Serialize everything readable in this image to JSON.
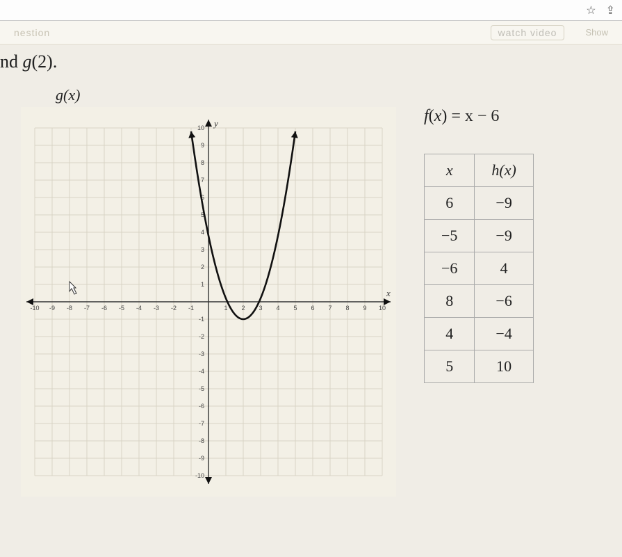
{
  "chrome": {
    "star": "☆",
    "ext": "⇪"
  },
  "topstrip": {
    "crumb_left": "nestion",
    "watch": "watch video",
    "show": "Show"
  },
  "question_prefix": "nd ",
  "question_fn": "g",
  "question_arg": "(2).",
  "graph": {
    "label": "g(x)",
    "x_axis_label": "x",
    "y_axis_label": "y",
    "xmin": -10,
    "xmax": 10,
    "ymin": -10,
    "ymax": 10,
    "tick_step": 1,
    "grid_color": "#d8d4c5",
    "axis_color": "#333333",
    "curve_color": "#111111",
    "background_color": "#f3f0e6",
    "curve_type": "parabola",
    "vertex": [
      2,
      -1
    ],
    "coefficient": 1.2,
    "x_range_draw": [
      -1,
      5
    ]
  },
  "formula": {
    "fn": "f",
    "var": "x",
    "rhs": "x − 6"
  },
  "table": {
    "col1": "x",
    "col2": "h(x)",
    "rows": [
      [
        "6",
        "−9"
      ],
      [
        "−5",
        "−9"
      ],
      [
        "−6",
        "4"
      ],
      [
        "8",
        "−6"
      ],
      [
        "4",
        "−4"
      ],
      [
        "5",
        "10"
      ]
    ]
  }
}
